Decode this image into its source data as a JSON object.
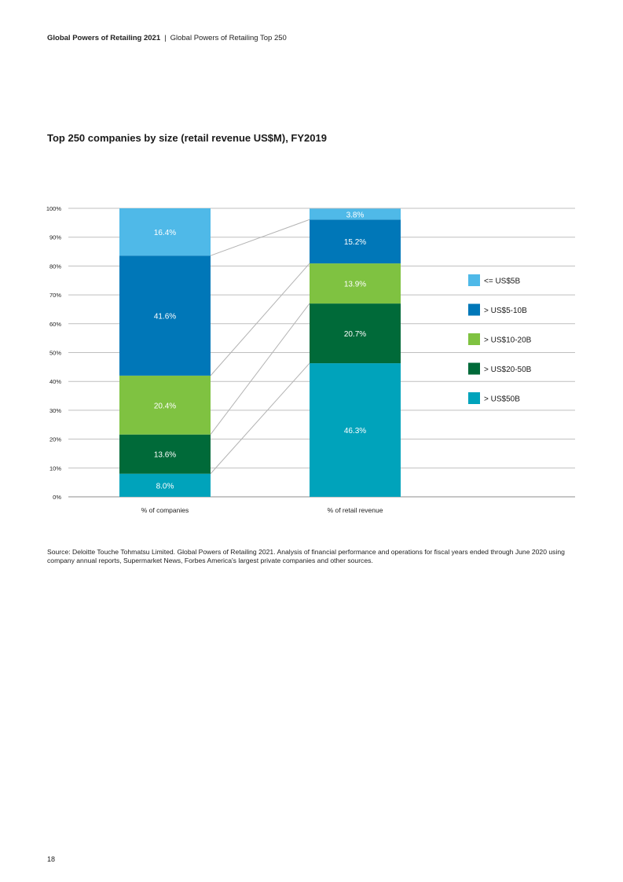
{
  "header": {
    "report_title": "Global Powers of Retailing 2021",
    "separator": "|",
    "section_title": "Global Powers of Retailing Top 250"
  },
  "colors": {
    "<= US$5B": "#4fb9e8",
    "> US$5-10B": "#0077b8",
    "> US$10-20B": "#7fc241",
    "> US$20-50B": "#006a39",
    "> US$50B": "#00a3bb",
    "gridline": "#bfbfbf",
    "connector": "#b3b3b3"
  },
  "chart_data": {
    "type": "bar",
    "stacked": true,
    "title": "Top 250 companies by size (retail revenue US$M), FY2019",
    "categories": [
      "% of companies",
      "% of retail revenue"
    ],
    "y_ticks": [
      "0%",
      "10%",
      "20%",
      "30%",
      "40%",
      "50%",
      "60%",
      "70%",
      "80%",
      "90%",
      "100%"
    ],
    "ylim": [
      0,
      100
    ],
    "grid": true,
    "legend_position": "right",
    "connector_lines": true,
    "series": [
      {
        "name": "> US$50B",
        "values": [
          8.0,
          46.3
        ],
        "labels": [
          "8.0%",
          "46.3%"
        ]
      },
      {
        "name": "> US$20-50B",
        "values": [
          13.6,
          20.7
        ],
        "labels": [
          "13.6%",
          "20.7%"
        ]
      },
      {
        "name": "> US$10-20B",
        "values": [
          20.4,
          13.9
        ],
        "labels": [
          "20.4%",
          "13.9%"
        ]
      },
      {
        "name": "> US$5-10B",
        "values": [
          41.6,
          15.2
        ],
        "labels": [
          "41.6%",
          "15.2%"
        ]
      },
      {
        "name": "<= US$5B",
        "values": [
          16.4,
          3.8
        ],
        "labels": [
          "16.4%",
          "3.8%"
        ]
      }
    ],
    "legend_order": [
      "<= US$5B",
      "> US$5-10B",
      "> US$10-20B",
      "> US$20-50B",
      "> US$50B"
    ]
  },
  "source": "Source: Deloitte Touche Tohmatsu Limited. Global Powers of Retailing 2021. Analysis of financial performance and operations for fiscal years ended through June 2020 using company annual reports, Supermarket News, Forbes America's largest private companies and other sources.",
  "page_number": "18"
}
